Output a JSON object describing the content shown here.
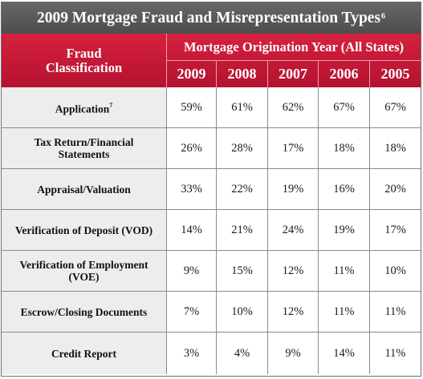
{
  "title": {
    "text": "2009 Mortgage Fraud and Misrepresentation Types",
    "sup": "6"
  },
  "header": {
    "classification_line1": "Fraud",
    "classification_line2": "Classification",
    "group_label": "Mortgage Origination Year (All States)",
    "years": [
      "2009",
      "2008",
      "2007",
      "2006",
      "2005"
    ]
  },
  "rows": [
    {
      "label": "Application",
      "sup": "7",
      "values": [
        "59%",
        "61%",
        "62%",
        "67%",
        "67%"
      ]
    },
    {
      "label": "Tax Return/Financial Statements",
      "values": [
        "26%",
        "28%",
        "17%",
        "18%",
        "18%"
      ]
    },
    {
      "label": "Appraisal/Valuation",
      "values": [
        "33%",
        "22%",
        "19%",
        "16%",
        "20%"
      ]
    },
    {
      "label": "Verification of Deposit (VOD)",
      "values": [
        "14%",
        "21%",
        "24%",
        "19%",
        "17%"
      ]
    },
    {
      "label": "Verification of Employment (VOE)",
      "values": [
        "9%",
        "15%",
        "12%",
        "11%",
        "10%"
      ]
    },
    {
      "label": "Escrow/Closing Documents",
      "values": [
        "7%",
        "10%",
        "12%",
        "11%",
        "11%"
      ]
    },
    {
      "label": "Credit Report",
      "values": [
        "3%",
        "4%",
        "9%",
        "14%",
        "11%"
      ]
    }
  ],
  "colors": {
    "title_bar": "#5a5a5a",
    "header_red": "#c41a37",
    "label_bg": "#ededed"
  }
}
